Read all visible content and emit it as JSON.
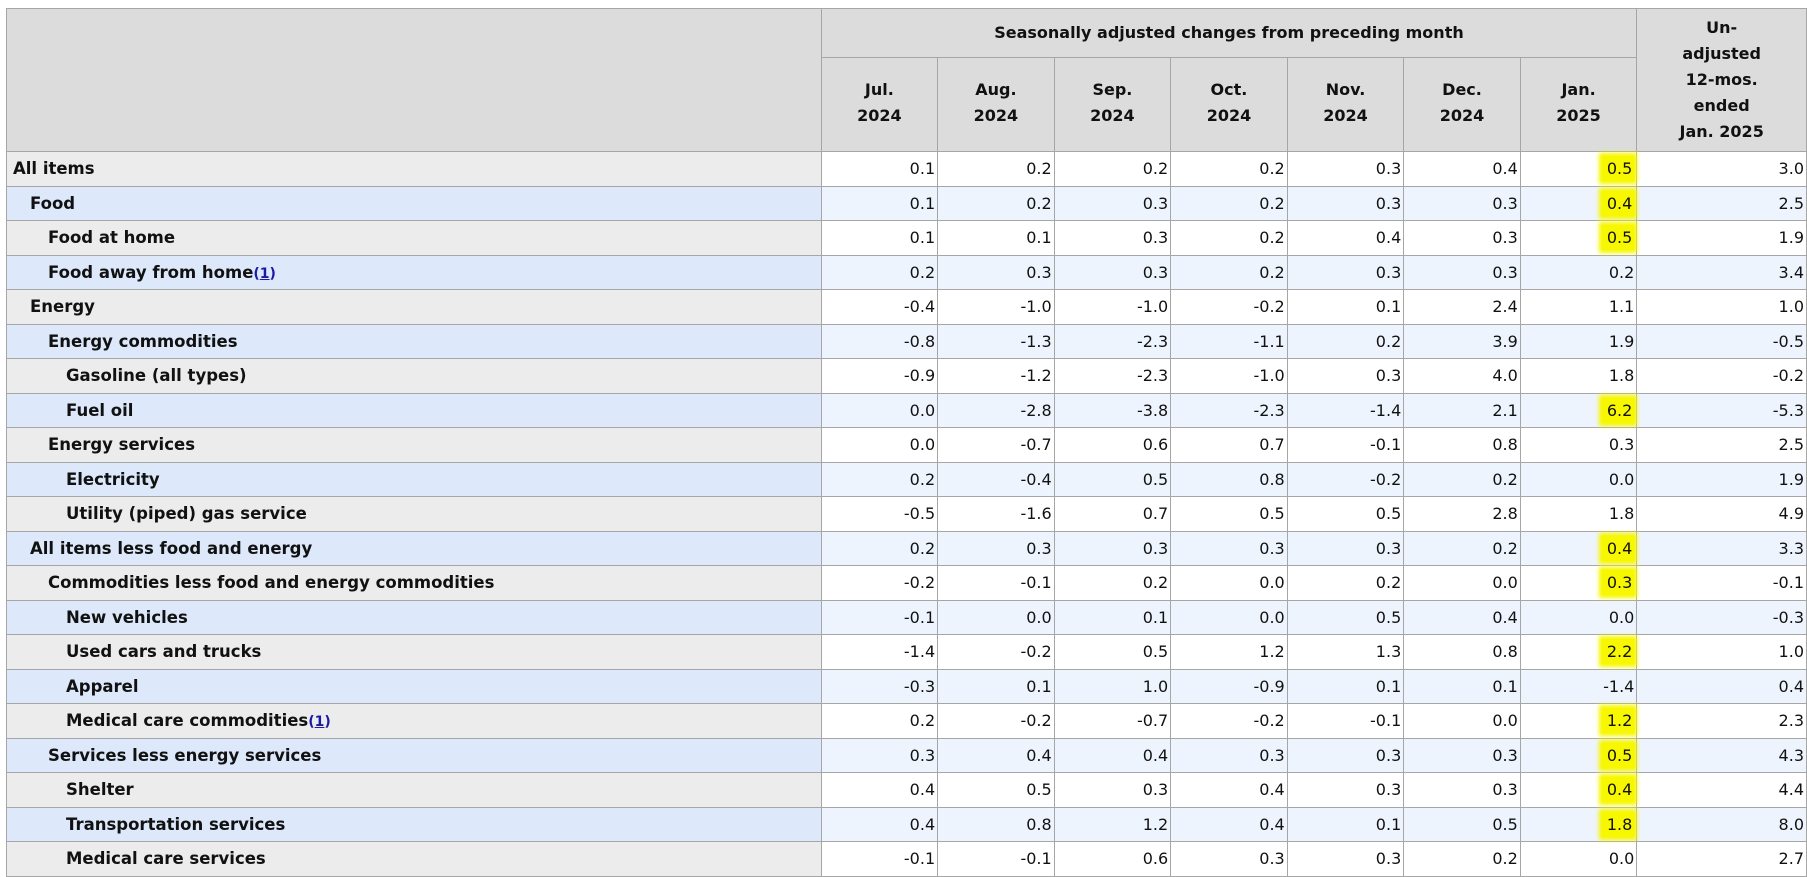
{
  "header": {
    "group_label": "Seasonally adjusted changes from preceding month",
    "unadjusted_label": [
      "Un-",
      "adjusted",
      "12-mos.",
      "ended",
      "Jan. 2025"
    ],
    "periods": [
      {
        "month": "Jul.",
        "year": "2024"
      },
      {
        "month": "Aug.",
        "year": "2024"
      },
      {
        "month": "Sep.",
        "year": "2024"
      },
      {
        "month": "Oct.",
        "year": "2024"
      },
      {
        "month": "Nov.",
        "year": "2024"
      },
      {
        "month": "Dec.",
        "year": "2024"
      },
      {
        "month": "Jan.",
        "year": "2025"
      }
    ]
  },
  "highlight_color": "#f7f700",
  "rows": [
    {
      "label": "All items",
      "indent": 0,
      "values": [
        "0.1",
        "0.2",
        "0.2",
        "0.2",
        "0.3",
        "0.4",
        "0.5"
      ],
      "unadjusted": "3.0",
      "highlight": true
    },
    {
      "label": "Food",
      "indent": 1,
      "values": [
        "0.1",
        "0.2",
        "0.3",
        "0.2",
        "0.3",
        "0.3",
        "0.4"
      ],
      "unadjusted": "2.5",
      "highlight": true
    },
    {
      "label": "Food at home",
      "indent": 2,
      "values": [
        "0.1",
        "0.1",
        "0.3",
        "0.2",
        "0.4",
        "0.3",
        "0.5"
      ],
      "unadjusted": "1.9",
      "highlight": true
    },
    {
      "label": "Food away from home",
      "indent": 2,
      "footnote": "1",
      "values": [
        "0.2",
        "0.3",
        "0.3",
        "0.2",
        "0.3",
        "0.3",
        "0.2"
      ],
      "unadjusted": "3.4",
      "highlight": false
    },
    {
      "label": "Energy",
      "indent": 1,
      "values": [
        "-0.4",
        "-1.0",
        "-1.0",
        "-0.2",
        "0.1",
        "2.4",
        "1.1"
      ],
      "unadjusted": "1.0",
      "highlight": false
    },
    {
      "label": "Energy commodities",
      "indent": 2,
      "values": [
        "-0.8",
        "-1.3",
        "-2.3",
        "-1.1",
        "0.2",
        "3.9",
        "1.9"
      ],
      "unadjusted": "-0.5",
      "highlight": false
    },
    {
      "label": "Gasoline (all types)",
      "indent": 3,
      "values": [
        "-0.9",
        "-1.2",
        "-2.3",
        "-1.0",
        "0.3",
        "4.0",
        "1.8"
      ],
      "unadjusted": "-0.2",
      "highlight": false
    },
    {
      "label": "Fuel oil",
      "indent": 3,
      "values": [
        "0.0",
        "-2.8",
        "-3.8",
        "-2.3",
        "-1.4",
        "2.1",
        "6.2"
      ],
      "unadjusted": "-5.3",
      "highlight": true
    },
    {
      "label": "Energy services",
      "indent": 2,
      "values": [
        "0.0",
        "-0.7",
        "0.6",
        "0.7",
        "-0.1",
        "0.8",
        "0.3"
      ],
      "unadjusted": "2.5",
      "highlight": false
    },
    {
      "label": "Electricity",
      "indent": 3,
      "values": [
        "0.2",
        "-0.4",
        "0.5",
        "0.8",
        "-0.2",
        "0.2",
        "0.0"
      ],
      "unadjusted": "1.9",
      "highlight": false
    },
    {
      "label": "Utility (piped) gas service",
      "indent": 3,
      "values": [
        "-0.5",
        "-1.6",
        "0.7",
        "0.5",
        "0.5",
        "2.8",
        "1.8"
      ],
      "unadjusted": "4.9",
      "highlight": false
    },
    {
      "label": "All items less food and energy",
      "indent": 1,
      "values": [
        "0.2",
        "0.3",
        "0.3",
        "0.3",
        "0.3",
        "0.2",
        "0.4"
      ],
      "unadjusted": "3.3",
      "highlight": true
    },
    {
      "label": "Commodities less food and energy commodities",
      "indent": 2,
      "values": [
        "-0.2",
        "-0.1",
        "0.2",
        "0.0",
        "0.2",
        "0.0",
        "0.3"
      ],
      "unadjusted": "-0.1",
      "highlight": true
    },
    {
      "label": "New vehicles",
      "indent": 3,
      "values": [
        "-0.1",
        "0.0",
        "0.1",
        "0.0",
        "0.5",
        "0.4",
        "0.0"
      ],
      "unadjusted": "-0.3",
      "highlight": false
    },
    {
      "label": "Used cars and trucks",
      "indent": 3,
      "values": [
        "-1.4",
        "-0.2",
        "0.5",
        "1.2",
        "1.3",
        "0.8",
        "2.2"
      ],
      "unadjusted": "1.0",
      "highlight": true
    },
    {
      "label": "Apparel",
      "indent": 3,
      "values": [
        "-0.3",
        "0.1",
        "1.0",
        "-0.9",
        "0.1",
        "0.1",
        "-1.4"
      ],
      "unadjusted": "0.4",
      "highlight": false
    },
    {
      "label": "Medical care commodities",
      "indent": 3,
      "footnote": "1",
      "values": [
        "0.2",
        "-0.2",
        "-0.7",
        "-0.2",
        "-0.1",
        "0.0",
        "1.2"
      ],
      "unadjusted": "2.3",
      "highlight": true
    },
    {
      "label": "Services less energy services",
      "indent": 2,
      "values": [
        "0.3",
        "0.4",
        "0.4",
        "0.3",
        "0.3",
        "0.3",
        "0.5"
      ],
      "unadjusted": "4.3",
      "highlight": true
    },
    {
      "label": "Shelter",
      "indent": 3,
      "values": [
        "0.4",
        "0.5",
        "0.3",
        "0.4",
        "0.3",
        "0.3",
        "0.4"
      ],
      "unadjusted": "4.4",
      "highlight": true
    },
    {
      "label": "Transportation services",
      "indent": 3,
      "values": [
        "0.4",
        "0.8",
        "1.2",
        "0.4",
        "0.1",
        "0.5",
        "1.8"
      ],
      "unadjusted": "8.0",
      "highlight": true
    },
    {
      "label": "Medical care services",
      "indent": 3,
      "values": [
        "-0.1",
        "-0.1",
        "0.6",
        "0.3",
        "0.3",
        "0.2",
        "0.0"
      ],
      "unadjusted": "2.7",
      "highlight": false
    }
  ]
}
